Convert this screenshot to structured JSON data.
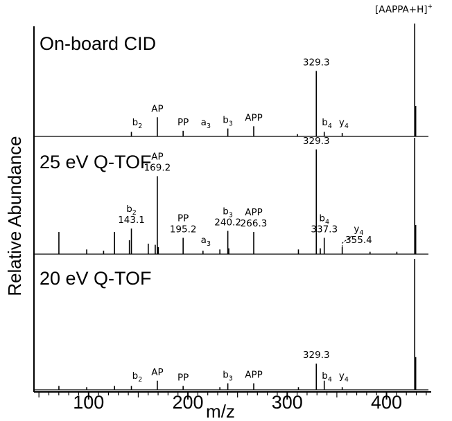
{
  "chart_data": {
    "type": "stacked-spectra",
    "xlabel": "m/z",
    "ylabel": "Relative Abundance",
    "xlim": [
      45,
      445
    ],
    "x_ticks": [
      100,
      200,
      300,
      400
    ],
    "x_minor_step": 10,
    "precursor_label": "[AAPPA+H]",
    "precursor_superscript": "+",
    "panels": [
      {
        "title": "On-board CID",
        "peaks": [
          {
            "mz": 143.1,
            "rel": 0.04
          },
          {
            "mz": 169.2,
            "rel": 0.17
          },
          {
            "mz": 195.2,
            "rel": 0.05
          },
          {
            "mz": 240.2,
            "rel": 0.07
          },
          {
            "mz": 266.3,
            "rel": 0.09
          },
          {
            "mz": 310.3,
            "rel": 0.02
          },
          {
            "mz": 329.3,
            "rel": 0.58
          },
          {
            "mz": 337.3,
            "rel": 0.04
          },
          {
            "mz": 355.4,
            "rel": 0.03
          },
          {
            "mz": 428.4,
            "rel": 1.0
          },
          {
            "mz": 429.4,
            "rel": 0.27
          }
        ],
        "labels": [
          {
            "mz": 169.2,
            "text": "AP",
            "value": ""
          },
          {
            "mz": 149,
            "text": "b",
            "sub": "2",
            "value": ""
          },
          {
            "mz": 195.2,
            "text": "PP",
            "value": ""
          },
          {
            "mz": 218,
            "text": "a",
            "sub": "3",
            "value": ""
          },
          {
            "mz": 240.2,
            "text": "b",
            "sub": "3",
            "value": ""
          },
          {
            "mz": 266.3,
            "text": "APP",
            "value": ""
          },
          {
            "mz": 329.3,
            "text": "",
            "value": "329.3"
          },
          {
            "mz": 340,
            "text": "b",
            "sub": "4",
            "value": ""
          },
          {
            "mz": 357,
            "text": "y",
            "sub": "4",
            "value": ""
          }
        ]
      },
      {
        "title": "25 eV Q-TOF",
        "peaks": [
          {
            "mz": 70.1,
            "rel": 0.19
          },
          {
            "mz": 98.1,
            "rel": 0.04
          },
          {
            "mz": 115.1,
            "rel": 0.03
          },
          {
            "mz": 126.1,
            "rel": 0.19
          },
          {
            "mz": 141.1,
            "rel": 0.12
          },
          {
            "mz": 143.1,
            "rel": 0.22
          },
          {
            "mz": 160.1,
            "rel": 0.09
          },
          {
            "mz": 167.1,
            "rel": 0.08
          },
          {
            "mz": 169.2,
            "rel": 0.67
          },
          {
            "mz": 170.2,
            "rel": 0.06
          },
          {
            "mz": 195.2,
            "rel": 0.14
          },
          {
            "mz": 215.2,
            "rel": 0.03
          },
          {
            "mz": 232.2,
            "rel": 0.04
          },
          {
            "mz": 240.2,
            "rel": 0.2
          },
          {
            "mz": 241.2,
            "rel": 0.05
          },
          {
            "mz": 266.3,
            "rel": 0.19
          },
          {
            "mz": 311.3,
            "rel": 0.04
          },
          {
            "mz": 329.3,
            "rel": 0.9
          },
          {
            "mz": 333.3,
            "rel": 0.05
          },
          {
            "mz": 337.3,
            "rel": 0.14
          },
          {
            "mz": 355.4,
            "rel": 0.06
          },
          {
            "mz": 383.4,
            "rel": 0.02
          },
          {
            "mz": 410.4,
            "rel": 0.02
          },
          {
            "mz": 428.4,
            "rel": 1.0
          },
          {
            "mz": 429.4,
            "rel": 0.25
          }
        ],
        "labels": [
          {
            "mz": 169.2,
            "text": "AP",
            "value": "169.2"
          },
          {
            "mz": 143.1,
            "text": "b",
            "sub": "2",
            "value": "143.1"
          },
          {
            "mz": 195.2,
            "text": "PP",
            "value": "195.2"
          },
          {
            "mz": 218,
            "text": "a",
            "sub": "3",
            "value": ""
          },
          {
            "mz": 240.2,
            "text": "b",
            "sub": "3",
            "value": "240.2"
          },
          {
            "mz": 266.3,
            "text": "APP",
            "value": "266.3"
          },
          {
            "mz": 329.3,
            "text": "",
            "value": "329.3"
          },
          {
            "mz": 337.3,
            "text": "b",
            "sub": "4",
            "value": "337.3"
          },
          {
            "mz": 372,
            "text": "y",
            "sub": "4",
            "value": "355.4"
          }
        ]
      },
      {
        "title": "20 eV Q-TOF",
        "peaks": [
          {
            "mz": 70.1,
            "rel": 0.03
          },
          {
            "mz": 98.1,
            "rel": 0.02
          },
          {
            "mz": 126.1,
            "rel": 0.03
          },
          {
            "mz": 143.1,
            "rel": 0.03
          },
          {
            "mz": 169.2,
            "rel": 0.07
          },
          {
            "mz": 195.2,
            "rel": 0.03
          },
          {
            "mz": 232.2,
            "rel": 0.02
          },
          {
            "mz": 240.2,
            "rel": 0.05
          },
          {
            "mz": 266.3,
            "rel": 0.05
          },
          {
            "mz": 311.3,
            "rel": 0.02
          },
          {
            "mz": 329.3,
            "rel": 0.2
          },
          {
            "mz": 337.3,
            "rel": 0.07
          },
          {
            "mz": 355.4,
            "rel": 0.02
          },
          {
            "mz": 428.4,
            "rel": 1.0
          },
          {
            "mz": 429.4,
            "rel": 0.25
          }
        ],
        "labels": [
          {
            "mz": 149,
            "text": "b",
            "sub": "2",
            "value": ""
          },
          {
            "mz": 169.2,
            "text": "AP",
            "value": ""
          },
          {
            "mz": 195.2,
            "text": "PP",
            "value": ""
          },
          {
            "mz": 240.2,
            "text": "b",
            "sub": "3",
            "value": ""
          },
          {
            "mz": 266.3,
            "text": "APP",
            "value": ""
          },
          {
            "mz": 329.3,
            "text": "",
            "value": "329.3"
          },
          {
            "mz": 340,
            "text": "b",
            "sub": "4",
            "value": ""
          },
          {
            "mz": 357,
            "text": "y",
            "sub": "4",
            "value": ""
          }
        ]
      }
    ]
  }
}
